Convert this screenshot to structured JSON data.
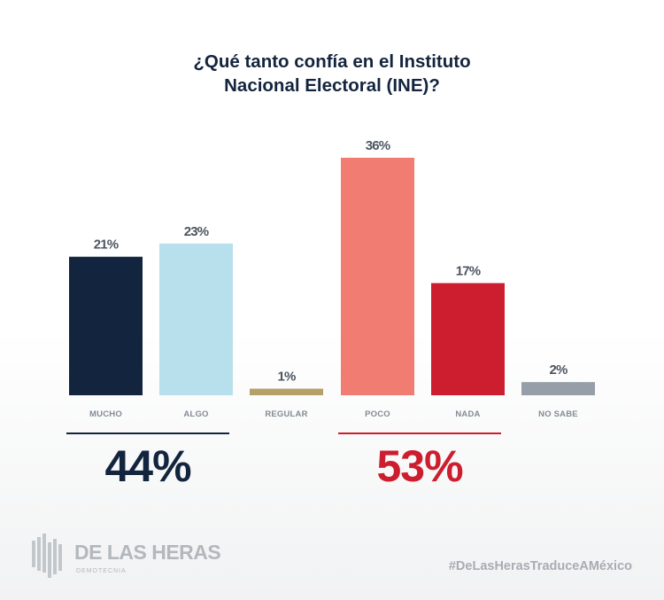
{
  "title": {
    "line1": "¿Qué tanto confía en el Instituto",
    "line2": "Nacional Electoral (INE)?"
  },
  "chart_data": {
    "type": "bar",
    "title": "¿Qué tanto confía en el Instituto Nacional Electoral (INE)?",
    "categories": [
      "MUCHO",
      "ALGO",
      "REGULAR",
      "POCO",
      "NADA",
      "NO SABE"
    ],
    "values": [
      21,
      23,
      1,
      36,
      17,
      2
    ],
    "value_labels": [
      "21%",
      "23%",
      "1%",
      "36%",
      "17%",
      "2%"
    ],
    "colors": [
      "#13253e",
      "#b8dfec",
      "#b5a06a",
      "#f07c72",
      "#cc1e2e",
      "#969fa8"
    ],
    "unit": "%",
    "xlabel": "",
    "ylabel": "",
    "ylim": [
      0,
      36
    ],
    "grid": false,
    "legend": "none"
  },
  "summary": {
    "positive": {
      "value": "44%",
      "color": "#13253e",
      "categories": [
        "MUCHO",
        "ALGO"
      ]
    },
    "negative": {
      "value": "53%",
      "color": "#cc1e2e",
      "categories": [
        "POCO",
        "NADA"
      ]
    }
  },
  "footer": {
    "logo_name": "DE LAS HERAS",
    "logo_sub": "DEMOTECNIA",
    "hashtag": "#DeLasHerasTraduceAMéxico"
  }
}
